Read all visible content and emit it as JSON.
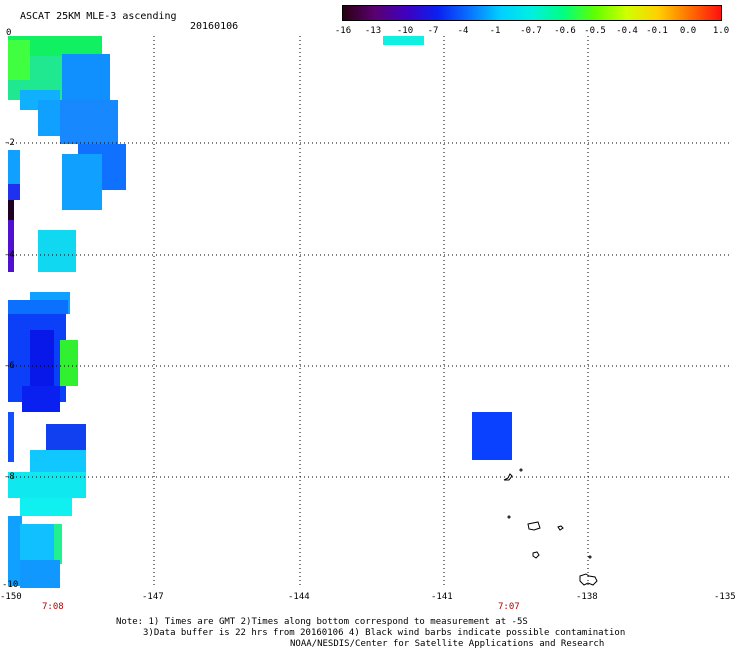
{
  "header": {
    "title": "ASCAT 25KM MLE-3 ascending",
    "date": "20160106"
  },
  "colorbar": {
    "labels": [
      "-16",
      "-13",
      "-10",
      "-7",
      "-4",
      "-1",
      "-0.7",
      "-0.6",
      "-0.5",
      "-0.4",
      "-0.1",
      "0.0",
      "1.0"
    ],
    "colors": [
      "#2a0010",
      "#5a0070",
      "#4000c0",
      "#0a20f0",
      "#0a70ff",
      "#00d0ff",
      "#00f0e0",
      "#00ff80",
      "#60ff00",
      "#d0ff00",
      "#ffd000",
      "#ff7000",
      "#ff1010"
    ]
  },
  "map": {
    "y_ticks": [
      "0",
      "-2",
      "-4",
      "-6",
      "-8",
      "-10"
    ],
    "x_ticks": [
      "-150",
      "-147",
      "-144",
      "-141",
      "-138",
      "-135"
    ],
    "time_labels": [
      "7:08",
      "7:07"
    ]
  },
  "footer": {
    "line1": "Note: 1) Times are GMT 2)Times along bottom correspond to measurement at -5S",
    "line2": "3)Data buffer is 22 hrs from 20160106 4) Black wind barbs indicate possible contamination",
    "line3": "NOAA/NESDIS/Center for Satellite Applications and Research"
  }
}
